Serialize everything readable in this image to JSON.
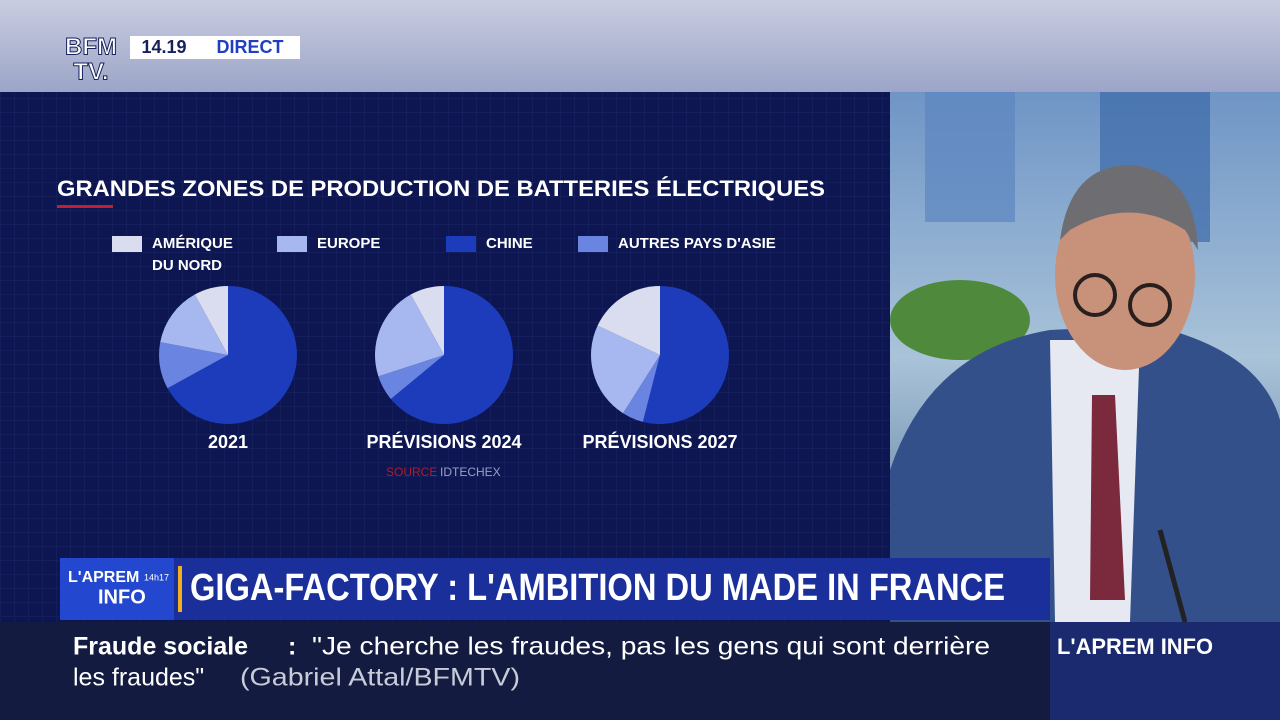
{
  "channel": {
    "logo_top": "BFM",
    "logo_bottom": "TV.",
    "time": "14.19",
    "live": "DIRECT"
  },
  "chart_data": {
    "type": "pie",
    "title": "GRANDES ZONES DE PRODUCTION DE BATTERIES ÉLECTRIQUES",
    "categories": [
      "AMÉRIQUE DU NORD",
      "EUROPE",
      "CHINE",
      "AUTRES PAYS D'ASIE"
    ],
    "colors": [
      "#d9ddef",
      "#a7b7ef",
      "#1c3cbc",
      "#6a84e2"
    ],
    "pies": [
      {
        "label": "2021",
        "values": [
          8,
          14,
          67,
          11
        ]
      },
      {
        "label": "PRÉVISIONS 2024",
        "values": [
          8,
          22,
          64,
          6
        ]
      },
      {
        "label": "PRÉVISIONS 2027",
        "values": [
          18,
          23,
          54,
          5
        ]
      }
    ],
    "source": "SOURCE",
    "source_name": "IDTECHEX"
  },
  "banner": {
    "show_top": "L'APREM",
    "show_time": "14h17",
    "show_bottom": "INFO",
    "headline": "GIGA-FACTORY : L'AMBITION DU MADE IN FRANCE"
  },
  "ticker": {
    "topic": "Fraude sociale",
    "separator": ":",
    "quote_line1": "\"Je cherche les fraudes, pas les gens qui sont derrière",
    "quote_line2": "les fraudes\"",
    "credit": "(Gabriel Attal/BFMTV)",
    "show": "L'APREM INFO"
  }
}
